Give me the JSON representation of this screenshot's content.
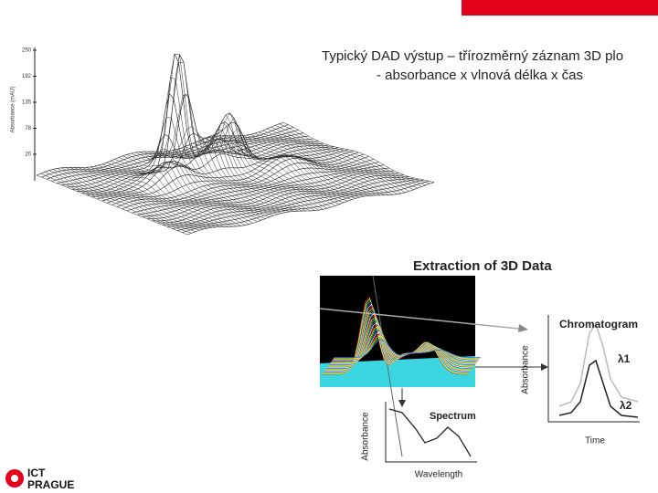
{
  "title": {
    "line1": "Typický DAD výstup – třírozměrný záznam 3D plo",
    "line2": "- absorbance x vlnová délka x čas"
  },
  "plot3d": {
    "axis_label": "Absorbance (mAU)",
    "ticks": [
      "250",
      "192",
      "135",
      "78",
      "20"
    ]
  },
  "extraction": {
    "title": "Extraction of 3D Data",
    "chromatogram": "Chromatogram",
    "lambda1": "λ1",
    "lambda2": "λ2",
    "chrom_y": "Absorbance",
    "chrom_x": "Time",
    "spectrum": "Spectrum",
    "spec_y": "Absorbance",
    "spec_x": "Wavelength"
  },
  "logo": {
    "line1": "ICT",
    "line2": "PRAGUE"
  }
}
